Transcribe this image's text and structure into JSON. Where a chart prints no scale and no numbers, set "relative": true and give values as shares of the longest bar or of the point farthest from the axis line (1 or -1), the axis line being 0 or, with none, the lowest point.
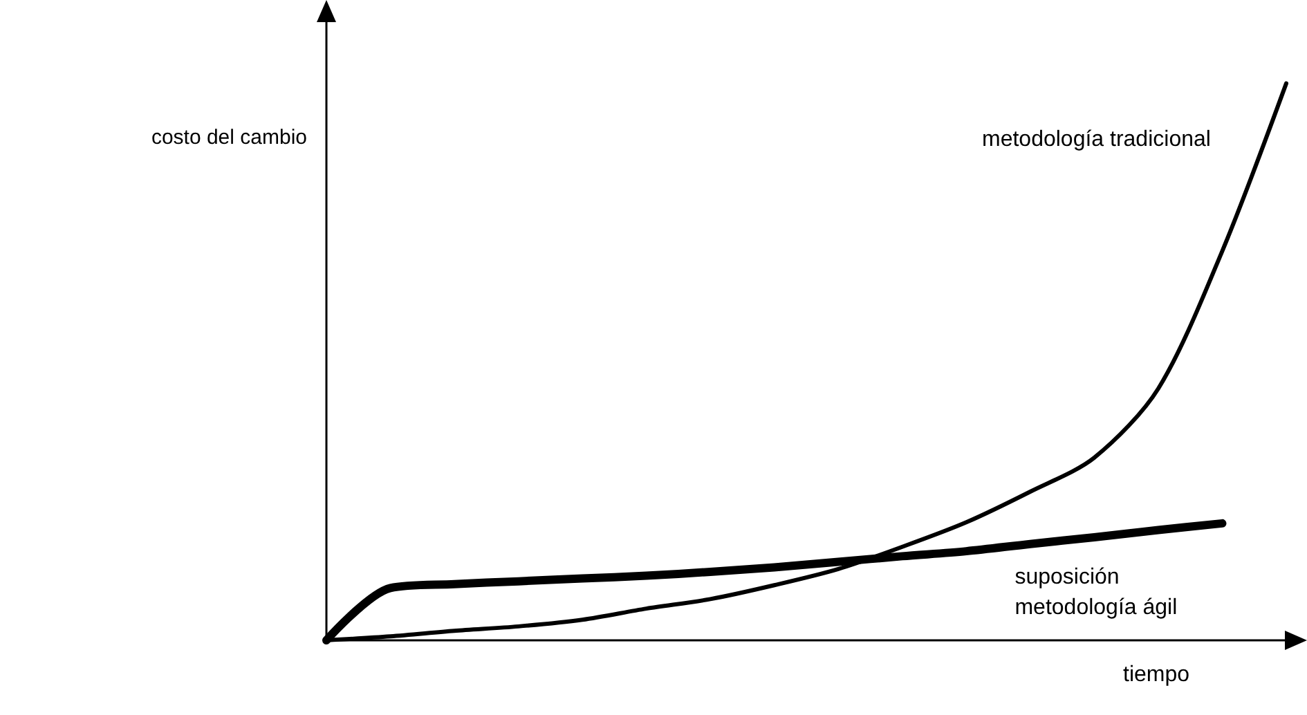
{
  "chart_data": {
    "type": "line",
    "relative": true,
    "xlabel": "tiempo",
    "ylabel": "costo del cambio",
    "categories": [
      null,
      null,
      null,
      null,
      null,
      null,
      null,
      null,
      null,
      null,
      null,
      null,
      null,
      null,
      null,
      null
    ],
    "series": [
      {
        "name": "metodología tradicional",
        "color": "#000000",
        "values": [
          0,
          0.007,
          0.017,
          0.025,
          0.037,
          0.057,
          0.074,
          0.099,
          0.128,
          0.168,
          0.212,
          0.267,
          0.328,
          0.452,
          0.699,
          1
        ]
      },
      {
        "name": "suposición metodología ágil",
        "color": "#000000",
        "values": [
          0,
          0.094,
          0.101,
          0.106,
          0.111,
          0.116,
          0.123,
          0.131,
          0.141,
          0.151,
          0.16,
          0.173,
          0.185,
          0.198,
          0.21,
          null
        ]
      }
    ]
  }
}
